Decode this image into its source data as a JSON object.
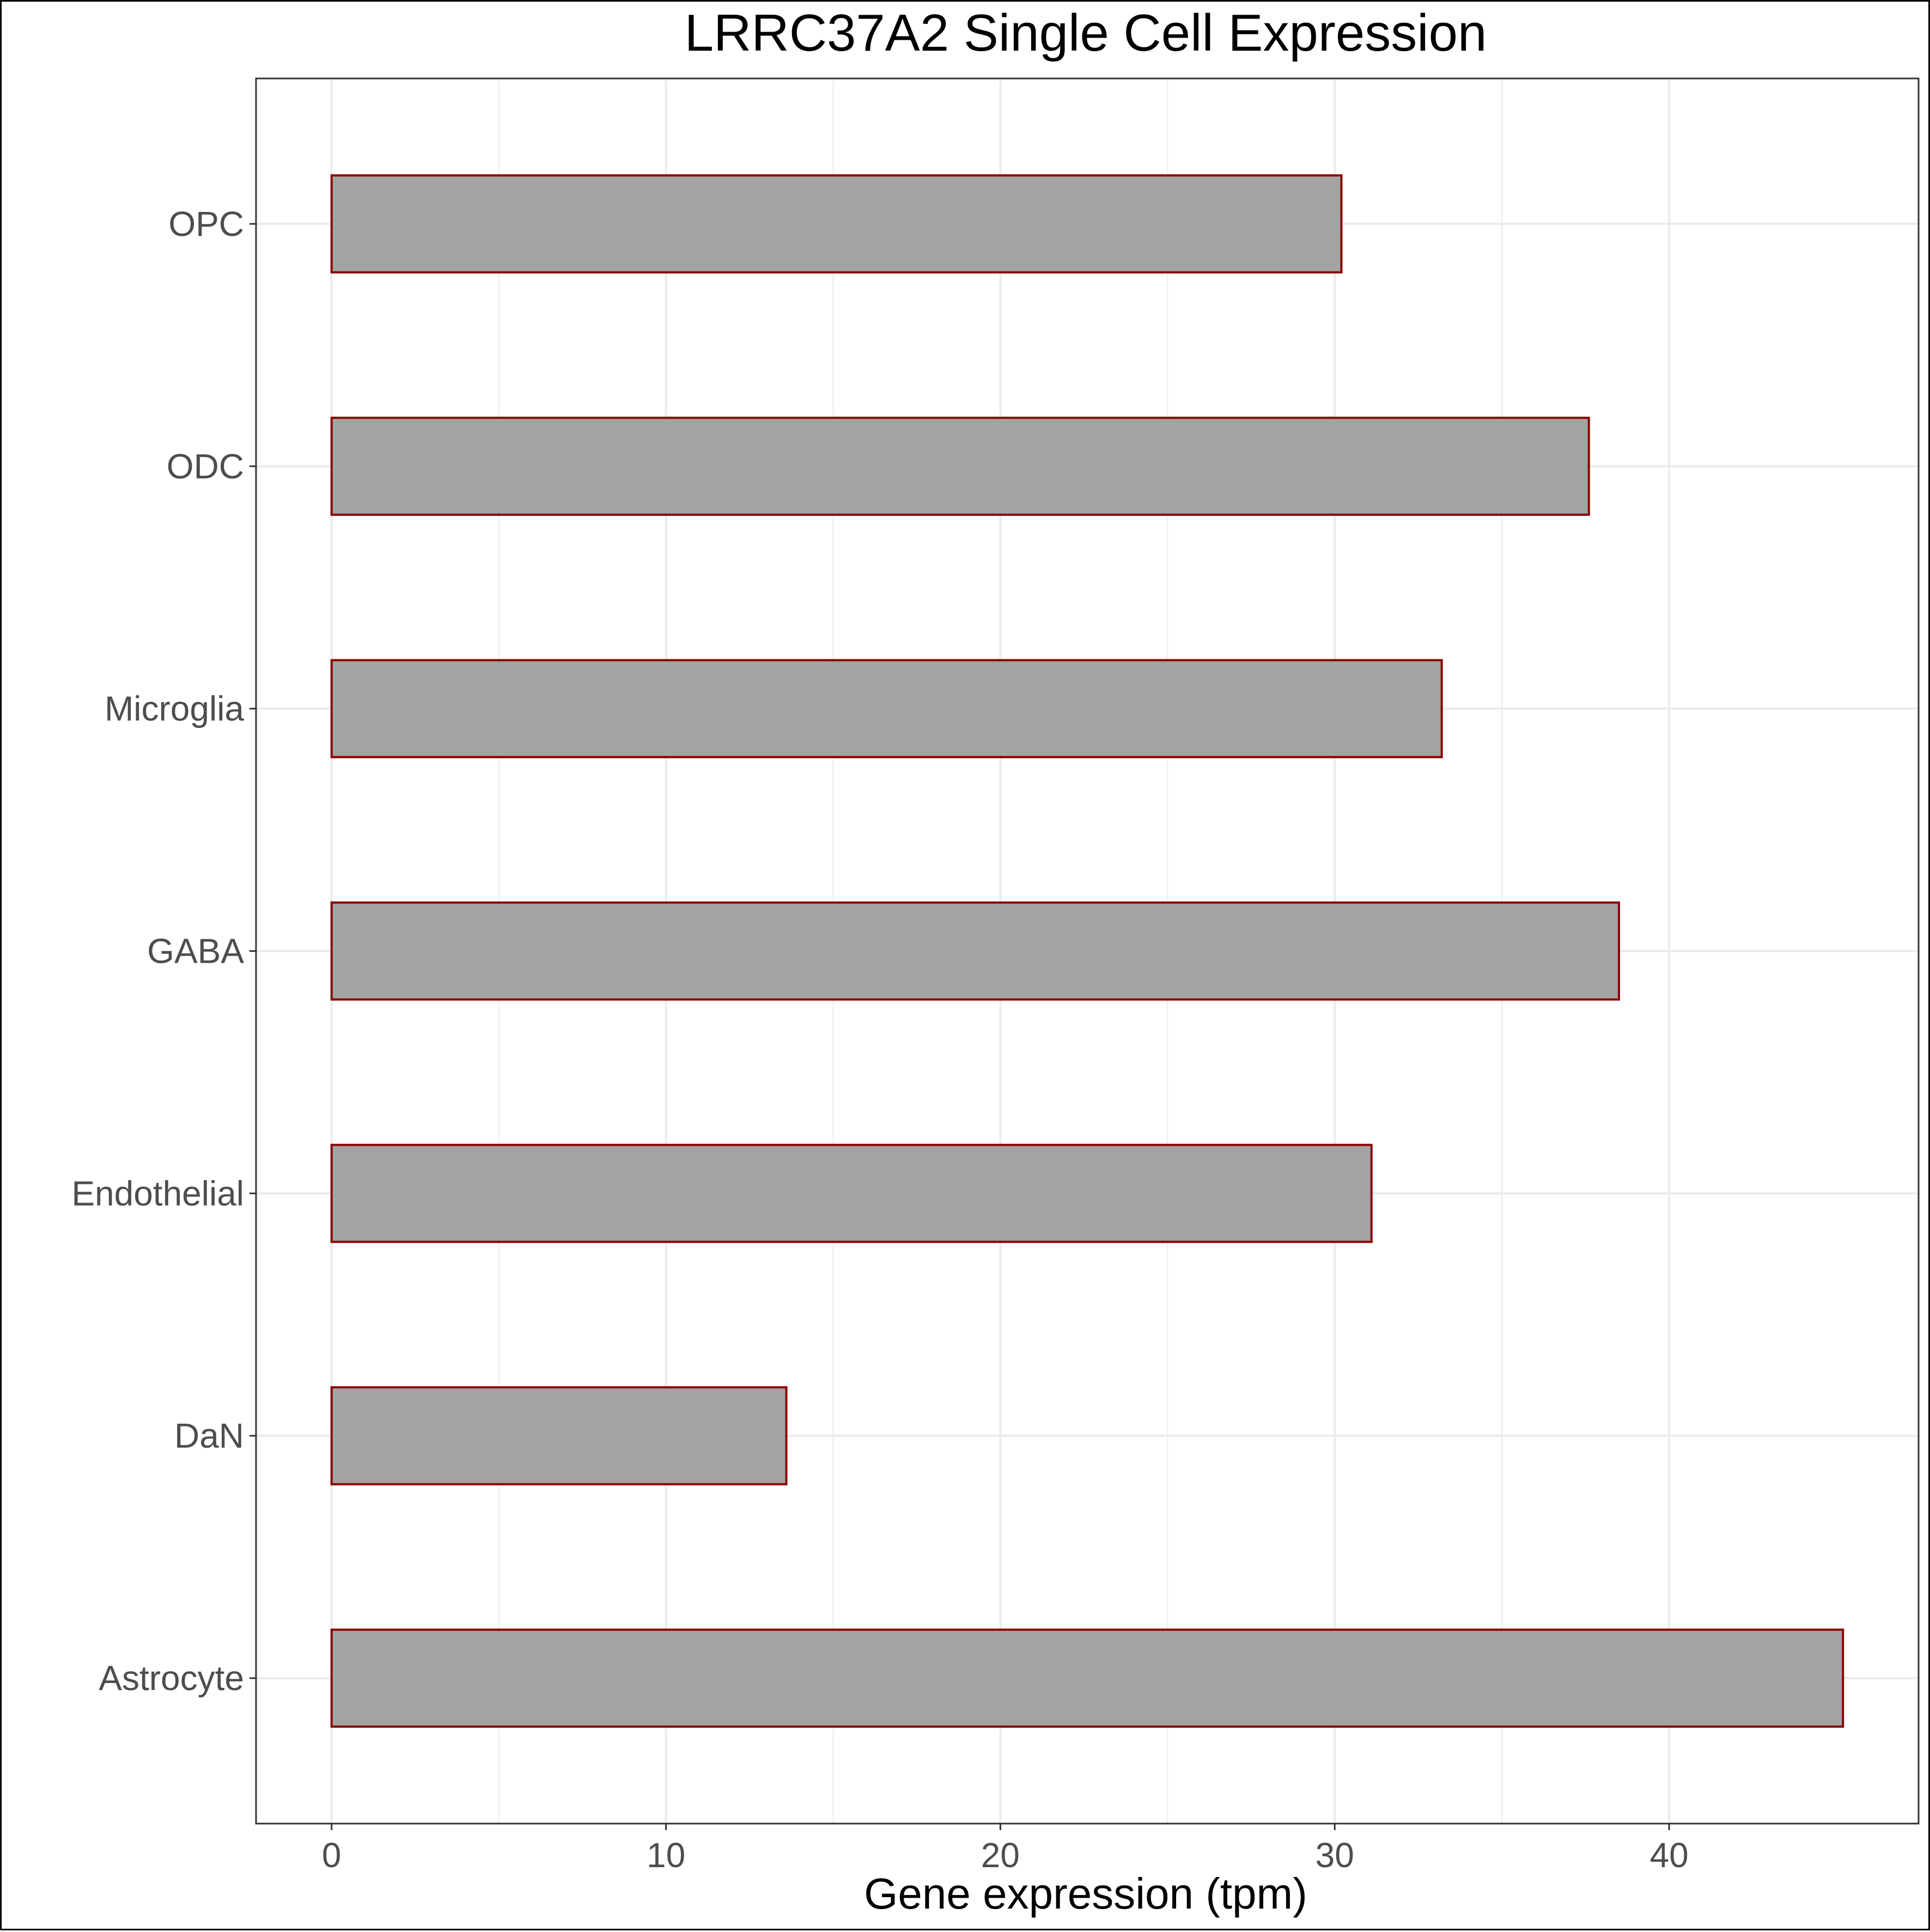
{
  "chart_data": {
    "type": "bar",
    "orientation": "horizontal",
    "title": "LRRC37A2 Single Cell Expression",
    "xlabel": "Gene expression (tpm)",
    "ylabel": "",
    "categories": [
      "Astrocyte",
      "DaN",
      "Endothelial",
      "GABA",
      "Microglia",
      "ODC",
      "OPC"
    ],
    "values": [
      45.2,
      13.6,
      31.1,
      38.5,
      33.2,
      37.6,
      30.2
    ],
    "xlim": [
      -2.26,
      47.46
    ],
    "xticks": [
      0,
      10,
      20,
      30,
      40
    ],
    "xtick_labels": [
      "0",
      "10",
      "20",
      "30",
      "40"
    ],
    "grid": true,
    "bar_fill": "#a3a3a3",
    "bar_outline": "#8b0000",
    "grid_color": "#ebebeb",
    "panel_border": "#333333"
  }
}
